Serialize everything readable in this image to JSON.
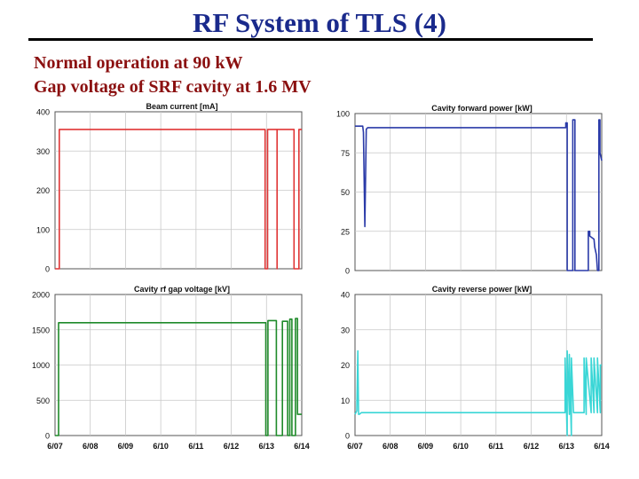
{
  "slide": {
    "title": "RF System of TLS (4)",
    "subtitle_1": "Normal operation at 90 kW",
    "subtitle_2": "Gap voltage of SRF cavity at 1.6 MV"
  },
  "chart_data": [
    {
      "type": "line",
      "title": "Beam current [mA]",
      "color": "#e03535",
      "x_ticks": [
        "6/07",
        "6/08",
        "6/09",
        "6/10",
        "6/11",
        "6/12",
        "6/13",
        "6/14"
      ],
      "xlim": [
        0,
        7
      ],
      "ylim": [
        0,
        400
      ],
      "y_ticks": [
        0,
        100,
        200,
        300,
        400
      ],
      "grid": true,
      "series": [
        {
          "x": [
            0,
            0.12,
            0.12,
            5.96,
            5.96,
            6.03,
            6.03,
            6.3,
            6.3,
            6.3,
            6.78,
            6.78,
            6.92,
            6.92,
            7.0
          ],
          "y": [
            0,
            0,
            355,
            355,
            0,
            0,
            355,
            355,
            0,
            355,
            355,
            0,
            0,
            355,
            355
          ]
        }
      ]
    },
    {
      "type": "line",
      "title": "Cavity forward power [kW]",
      "color": "#2a3aa8",
      "x_ticks": [
        "6/07",
        "6/08",
        "6/09",
        "6/10",
        "6/11",
        "6/12",
        "6/13",
        "6/14"
      ],
      "xlim": [
        0,
        7
      ],
      "ylim": [
        0,
        100
      ],
      "y_ticks": [
        0,
        25,
        50,
        75,
        100
      ],
      "grid": true,
      "series": [
        {
          "x": [
            0,
            0.22,
            0.24,
            0.28,
            0.32,
            0.36,
            5.98,
            5.98,
            6.02,
            6.02,
            6.07,
            6.07,
            6.18,
            6.18,
            6.24,
            6.24,
            6.62,
            6.62,
            6.66,
            6.66,
            6.78,
            6.8,
            6.85,
            6.88,
            6.92,
            6.92,
            6.95,
            6.95,
            7.0
          ],
          "y": [
            92,
            92,
            88,
            28,
            90,
            91,
            91,
            94,
            94,
            0,
            0,
            0,
            0,
            96,
            96,
            0,
            0,
            25,
            25,
            22,
            20,
            15,
            10,
            0,
            0,
            96,
            96,
            75,
            70
          ]
        }
      ]
    },
    {
      "type": "line",
      "title": "Cavity rf gap voltage [kV]",
      "color": "#1f8a2a",
      "x_ticks": [
        "6/07",
        "6/08",
        "6/09",
        "6/10",
        "6/11",
        "6/12",
        "6/13",
        "6/14"
      ],
      "xlim": [
        0,
        7
      ],
      "ylim": [
        0,
        2000
      ],
      "y_ticks": [
        0,
        500,
        1000,
        1500,
        2000
      ],
      "grid": true,
      "series": [
        {
          "x": [
            0,
            0.1,
            0.1,
            5.98,
            5.98,
            6.04,
            6.04,
            6.28,
            6.28,
            6.45,
            6.45,
            6.6,
            6.6,
            6.66,
            6.66,
            6.72,
            6.72,
            6.82,
            6.82,
            6.88,
            6.88,
            7.0
          ],
          "y": [
            0,
            0,
            1600,
            1600,
            0,
            0,
            1630,
            1630,
            0,
            0,
            1620,
            1620,
            0,
            0,
            1650,
            1650,
            0,
            0,
            1660,
            1660,
            300,
            300
          ]
        }
      ]
    },
    {
      "type": "line",
      "title": "Cavity reverse power [kW]",
      "color": "#3ad6d6",
      "x_ticks": [
        "6/07",
        "6/08",
        "6/09",
        "6/10",
        "6/11",
        "6/12",
        "6/13",
        "6/14"
      ],
      "xlim": [
        0,
        7
      ],
      "ylim": [
        0,
        40
      ],
      "y_ticks": [
        0,
        10,
        20,
        30,
        40
      ],
      "grid": true,
      "series": [
        {
          "x": [
            0,
            0.05,
            0.08,
            0.1,
            0.12,
            0.18,
            5.96,
            5.96,
            6.02,
            6.02,
            6.08,
            6.08,
            6.14,
            6.14,
            6.2,
            6.2,
            6.5,
            6.5,
            6.56,
            6.56,
            6.7,
            6.7,
            6.78,
            6.78,
            6.88,
            6.88,
            6.96,
            6.96,
            7.0
          ],
          "y": [
            6,
            7,
            24,
            6,
            6,
            6.5,
            6.5,
            22,
            0,
            24,
            6,
            23,
            0,
            22,
            6.5,
            6.5,
            6.5,
            22,
            6,
            22,
            6.5,
            22,
            6.5,
            22,
            6.5,
            22,
            6.5,
            20,
            20
          ]
        }
      ]
    }
  ]
}
